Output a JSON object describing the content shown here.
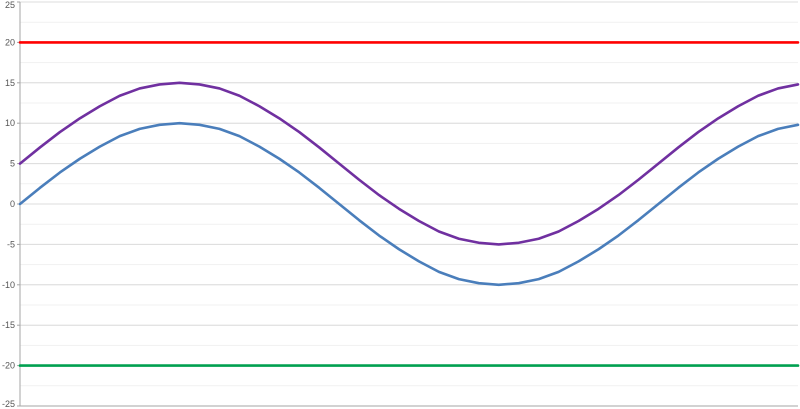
{
  "chart_data": {
    "type": "line",
    "title": "",
    "xlabel": "",
    "ylabel": "",
    "ylim": [
      -25,
      25
    ],
    "xlim": [
      0,
      19.5
    ],
    "y_ticks": [
      "25",
      "20",
      "15",
      "10",
      "5",
      "0",
      "-5",
      "-10",
      "-15",
      "-20",
      "-25"
    ],
    "grid": {
      "major_y": true,
      "minor_y": true
    },
    "legend": "none",
    "series": [
      {
        "color": "#ff0000",
        "x": [
          0,
          19.5
        ],
        "y": [
          20,
          20
        ]
      },
      {
        "color": "#00a050",
        "x": [
          0,
          19.5
        ],
        "y": [
          -20,
          -20
        ]
      },
      {
        "color": "#7030a0",
        "x": [
          0.0,
          0.5,
          1.0,
          1.5,
          2.0,
          2.5,
          3.0,
          3.5,
          4.0,
          4.5,
          5.0,
          5.5,
          6.0,
          6.5,
          7.0,
          7.5,
          8.0,
          8.5,
          9.0,
          9.5,
          10.0,
          10.5,
          11.0,
          11.5,
          12.0,
          12.5,
          13.0,
          13.5,
          14.0,
          14.5,
          15.0,
          15.5,
          16.0,
          16.5,
          17.0,
          17.5,
          18.0,
          18.5,
          19.0,
          19.5
        ],
        "y": [
          5.0,
          7.0,
          8.9,
          10.6,
          12.1,
          13.4,
          14.3,
          14.8,
          15.0,
          14.8,
          14.3,
          13.4,
          12.1,
          10.6,
          8.9,
          7.0,
          5.0,
          3.0,
          1.1,
          -0.6,
          -2.1,
          -3.4,
          -4.3,
          -4.8,
          -5.0,
          -4.8,
          -4.3,
          -3.4,
          -2.1,
          -0.6,
          1.1,
          3.0,
          5.0,
          7.0,
          8.9,
          10.6,
          12.1,
          13.4,
          14.3,
          14.8
        ]
      },
      {
        "color": "#4a7ebb",
        "x": [
          0.0,
          0.5,
          1.0,
          1.5,
          2.0,
          2.5,
          3.0,
          3.5,
          4.0,
          4.5,
          5.0,
          5.5,
          6.0,
          6.5,
          7.0,
          7.5,
          8.0,
          8.5,
          9.0,
          9.5,
          10.0,
          10.5,
          11.0,
          11.5,
          12.0,
          12.5,
          13.0,
          13.5,
          14.0,
          14.5,
          15.0,
          15.5,
          16.0,
          16.5,
          17.0,
          17.5,
          18.0,
          18.5,
          19.0,
          19.5
        ],
        "y": [
          0.0,
          2.0,
          3.9,
          5.6,
          7.1,
          8.4,
          9.3,
          9.8,
          10.0,
          9.8,
          9.3,
          8.4,
          7.1,
          5.6,
          3.9,
          2.0,
          0.0,
          -2.0,
          -3.9,
          -5.6,
          -7.1,
          -8.4,
          -9.3,
          -9.8,
          -10.0,
          -9.8,
          -9.3,
          -8.4,
          -7.1,
          -5.6,
          -3.9,
          -2.0,
          0.0,
          2.0,
          3.9,
          5.6,
          7.1,
          8.4,
          9.3,
          9.8
        ]
      }
    ]
  }
}
